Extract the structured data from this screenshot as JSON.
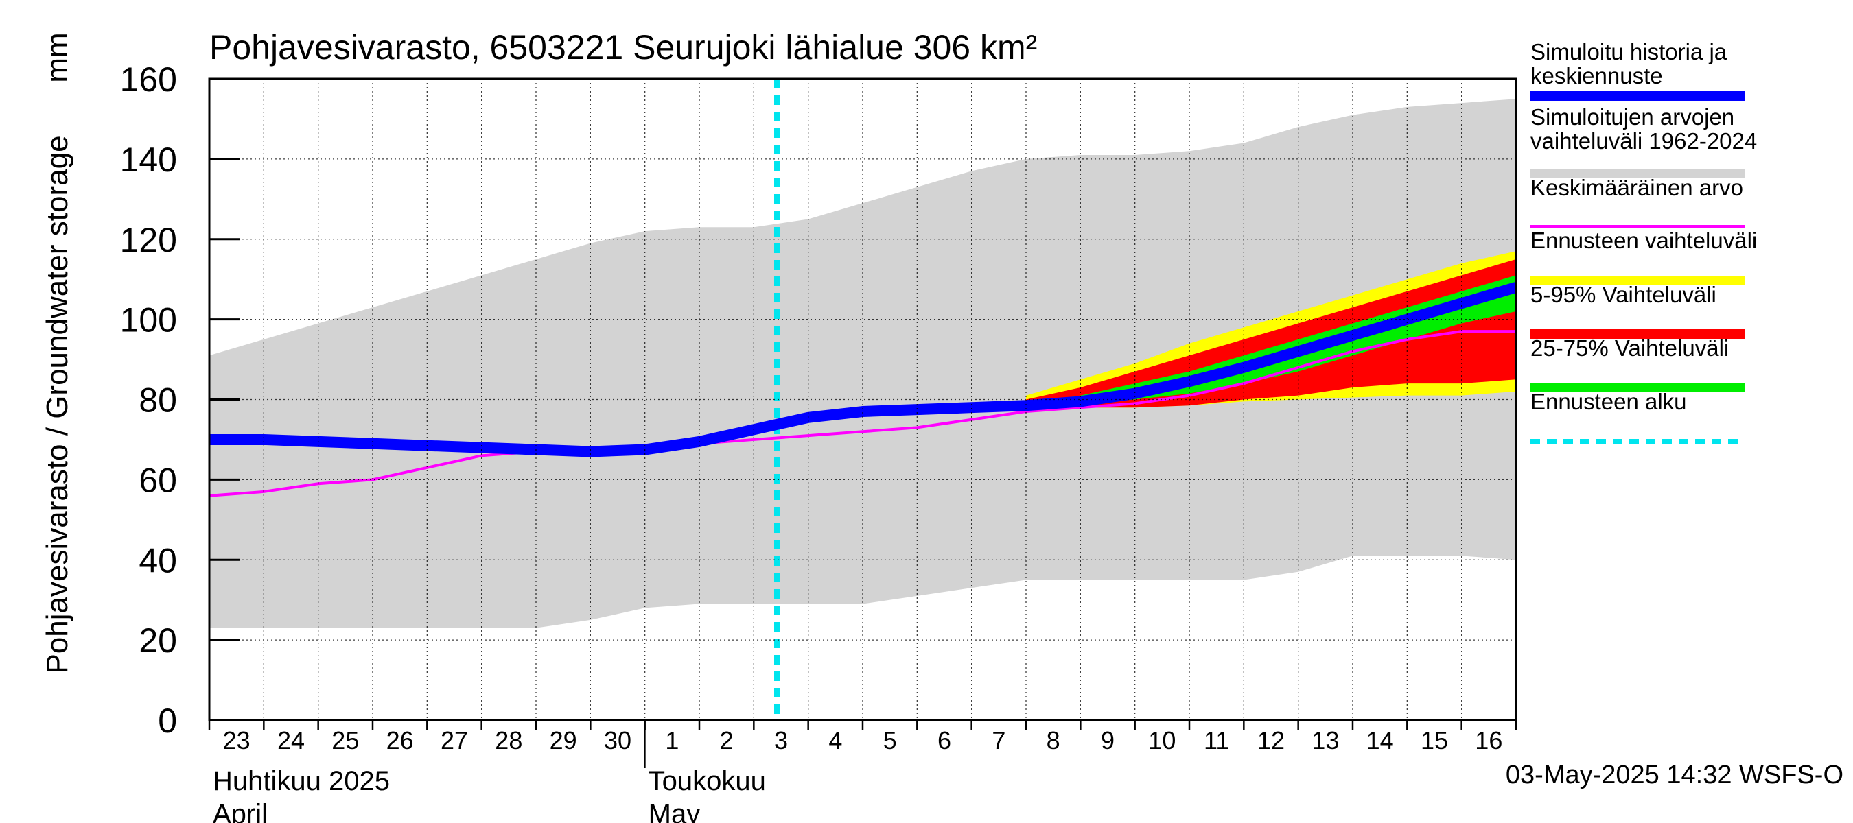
{
  "chart_data": {
    "type": "area",
    "title": "Pohjavesivarasto, 6503221 Seurujoki lähialue 306 km²",
    "ylabel": "Pohjavesivarasto / Groundwater storage",
    "yunit": "mm",
    "ylim": [
      0,
      160
    ],
    "yticks": [
      0,
      20,
      40,
      60,
      80,
      100,
      120,
      140,
      160
    ],
    "x_day_labels": [
      "23",
      "24",
      "25",
      "26",
      "27",
      "28",
      "29",
      "30",
      "1",
      "2",
      "3",
      "4",
      "5",
      "6",
      "7",
      "8",
      "9",
      "10",
      "11",
      "12",
      "13",
      "14",
      "15",
      "16"
    ],
    "x_months": [
      {
        "fi": "Huhtikuu  2025",
        "en": "April"
      },
      {
        "fi": "Toukokuu",
        "en": "May"
      }
    ],
    "forecast_start": "3",
    "grid": true,
    "legend_position": "right",
    "footer": "03-May-2025 14:32 WSFS-O",
    "colors": {
      "history": "#0000ff",
      "range": "#d3d3d3",
      "mean": "#ff00ff",
      "forecast_range": "#ffff00",
      "p5_95": "#ff0000",
      "p25_75": "#00ee00",
      "forecast_start": "#00e5ee"
    },
    "legend": [
      {
        "key": "history",
        "label": "Simuloitu historia ja keskiennuste",
        "style": "thick"
      },
      {
        "key": "range",
        "label": "Simuloitujen arvojen vaihteluväli 1962-2024",
        "style": "band"
      },
      {
        "key": "mean",
        "label": "Keskimääräinen arvo",
        "style": "thin"
      },
      {
        "key": "forecast_range",
        "label": "Ennusteen vaihteluväli",
        "style": "band"
      },
      {
        "key": "p5_95",
        "label": "5-95% Vaihteluväli",
        "style": "band"
      },
      {
        "key": "p25_75",
        "label": "25-75% Vaihteluväli",
        "style": "band"
      },
      {
        "key": "forecast_start",
        "label": "Ennusteen alku",
        "style": "dashed"
      }
    ],
    "x": [
      0,
      1,
      2,
      3,
      4,
      5,
      6,
      7,
      8,
      9,
      10,
      11,
      12,
      13,
      14,
      15,
      16,
      17,
      18,
      19,
      20,
      21,
      22,
      23,
      24
    ],
    "series": [
      {
        "key": "range_upper",
        "values": [
          91,
          95,
          99,
          103,
          107,
          111,
          115,
          119,
          122,
          123,
          123,
          125,
          129,
          133,
          137,
          140,
          141,
          141,
          142,
          144,
          148,
          151,
          153,
          154,
          155
        ]
      },
      {
        "key": "range_lower",
        "values": [
          23,
          23,
          23,
          23,
          23,
          23,
          23,
          25,
          28,
          29,
          29,
          29,
          29,
          31,
          33,
          35,
          35,
          35,
          35,
          35,
          37,
          41,
          41,
          41,
          40
        ]
      },
      {
        "key": "mean",
        "values": [
          56,
          57,
          59,
          60,
          63,
          66,
          67,
          68,
          68,
          69,
          70,
          71,
          72,
          73,
          75,
          77,
          78,
          79,
          81,
          84,
          88,
          92,
          95,
          97,
          97
        ]
      },
      {
        "key": "history",
        "values": [
          70,
          70,
          69.5,
          69,
          68.5,
          68,
          67.5,
          67,
          67.5,
          69.5,
          72.5,
          75.5,
          77,
          77.5,
          78,
          78.5,
          79.5,
          81.5,
          84.5,
          88,
          92,
          96,
          100,
          104,
          108
        ]
      }
    ],
    "forecast": {
      "x": [
        15,
        16,
        17,
        18,
        19,
        20,
        21,
        22,
        23,
        24
      ],
      "range_upper": [
        81,
        85,
        89,
        94,
        98,
        102,
        106,
        110,
        114,
        117
      ],
      "range_lower": [
        79,
        78,
        78,
        78.5,
        79.5,
        80,
        80.5,
        81,
        81,
        82
      ],
      "p95": [
        80,
        83,
        87,
        91,
        95,
        99,
        103,
        107,
        111,
        115
      ],
      "p5": [
        78.5,
        78,
        78,
        78.5,
        80,
        81,
        83,
        84,
        84,
        85
      ],
      "p75": [
        79,
        81,
        84,
        87,
        91,
        95,
        99,
        103,
        107,
        111
      ],
      "p25": [
        78.5,
        79,
        80,
        81.5,
        84,
        87,
        91,
        95,
        99,
        102
      ]
    }
  }
}
